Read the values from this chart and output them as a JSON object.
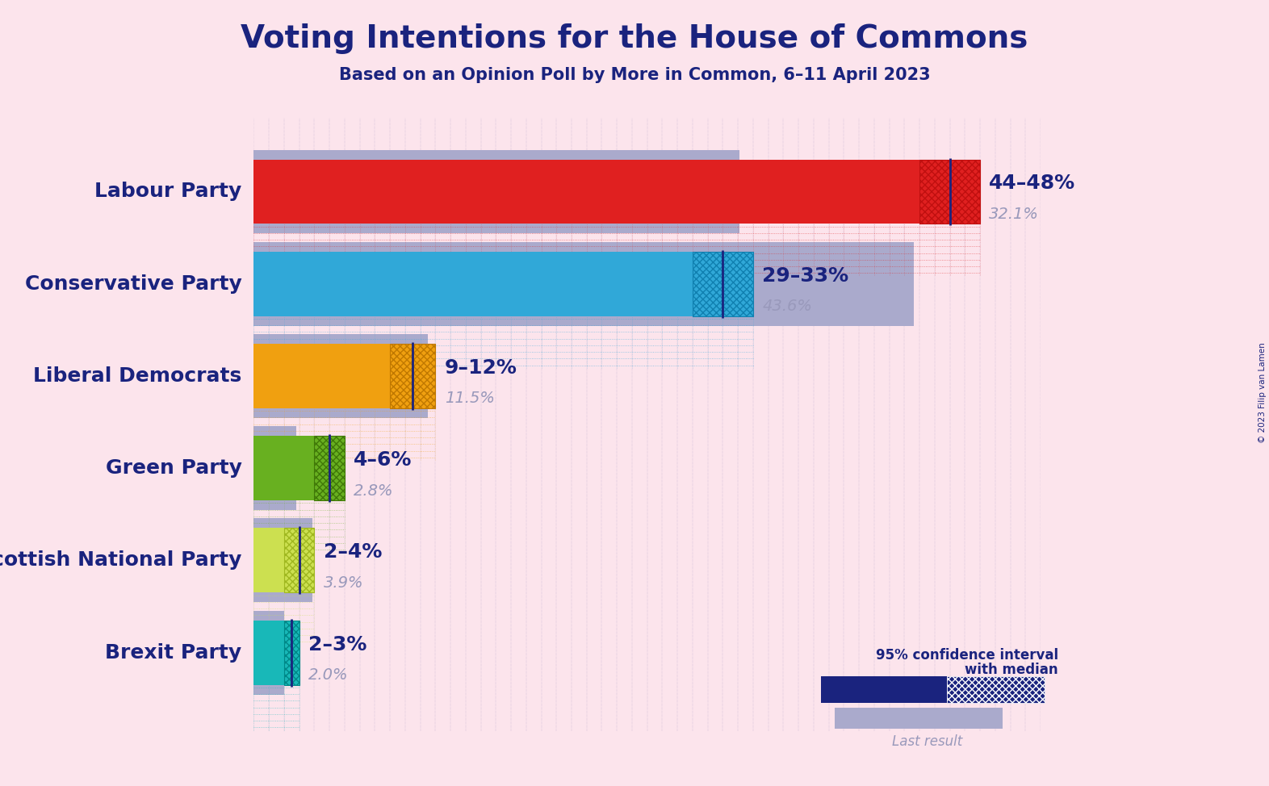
{
  "title": "Voting Intentions for the House of Commons",
  "subtitle": "Based on an Opinion Poll by More in Common, 6–11 April 2023",
  "copyright": "© 2023 Filip van Lamen",
  "bg": "#fce4ec",
  "parties": [
    "Labour Party",
    "Conservative Party",
    "Liberal Democrats",
    "Green Party",
    "Scottish National Party",
    "Brexit Party"
  ],
  "ci_low": [
    44,
    29,
    9,
    4,
    2,
    2
  ],
  "ci_high": [
    48,
    33,
    12,
    6,
    4,
    3
  ],
  "last_result": [
    32.1,
    43.6,
    11.5,
    2.8,
    3.9,
    2.0
  ],
  "ci_labels": [
    "44–48%",
    "29–33%",
    "9–12%",
    "4–6%",
    "2–4%",
    "2–3%"
  ],
  "colors": [
    "#e02020",
    "#30a8d8",
    "#f0a010",
    "#68b020",
    "#cce050",
    "#18b8b8"
  ],
  "hatch_colors": [
    "#c01010",
    "#1080b0",
    "#c07800",
    "#407808",
    "#a0b820",
    "#008888"
  ],
  "gray": "#aaaacc",
  "navy": "#1a237e",
  "last_label_color": "#9999bb",
  "xmax": 52,
  "bh": 0.35
}
